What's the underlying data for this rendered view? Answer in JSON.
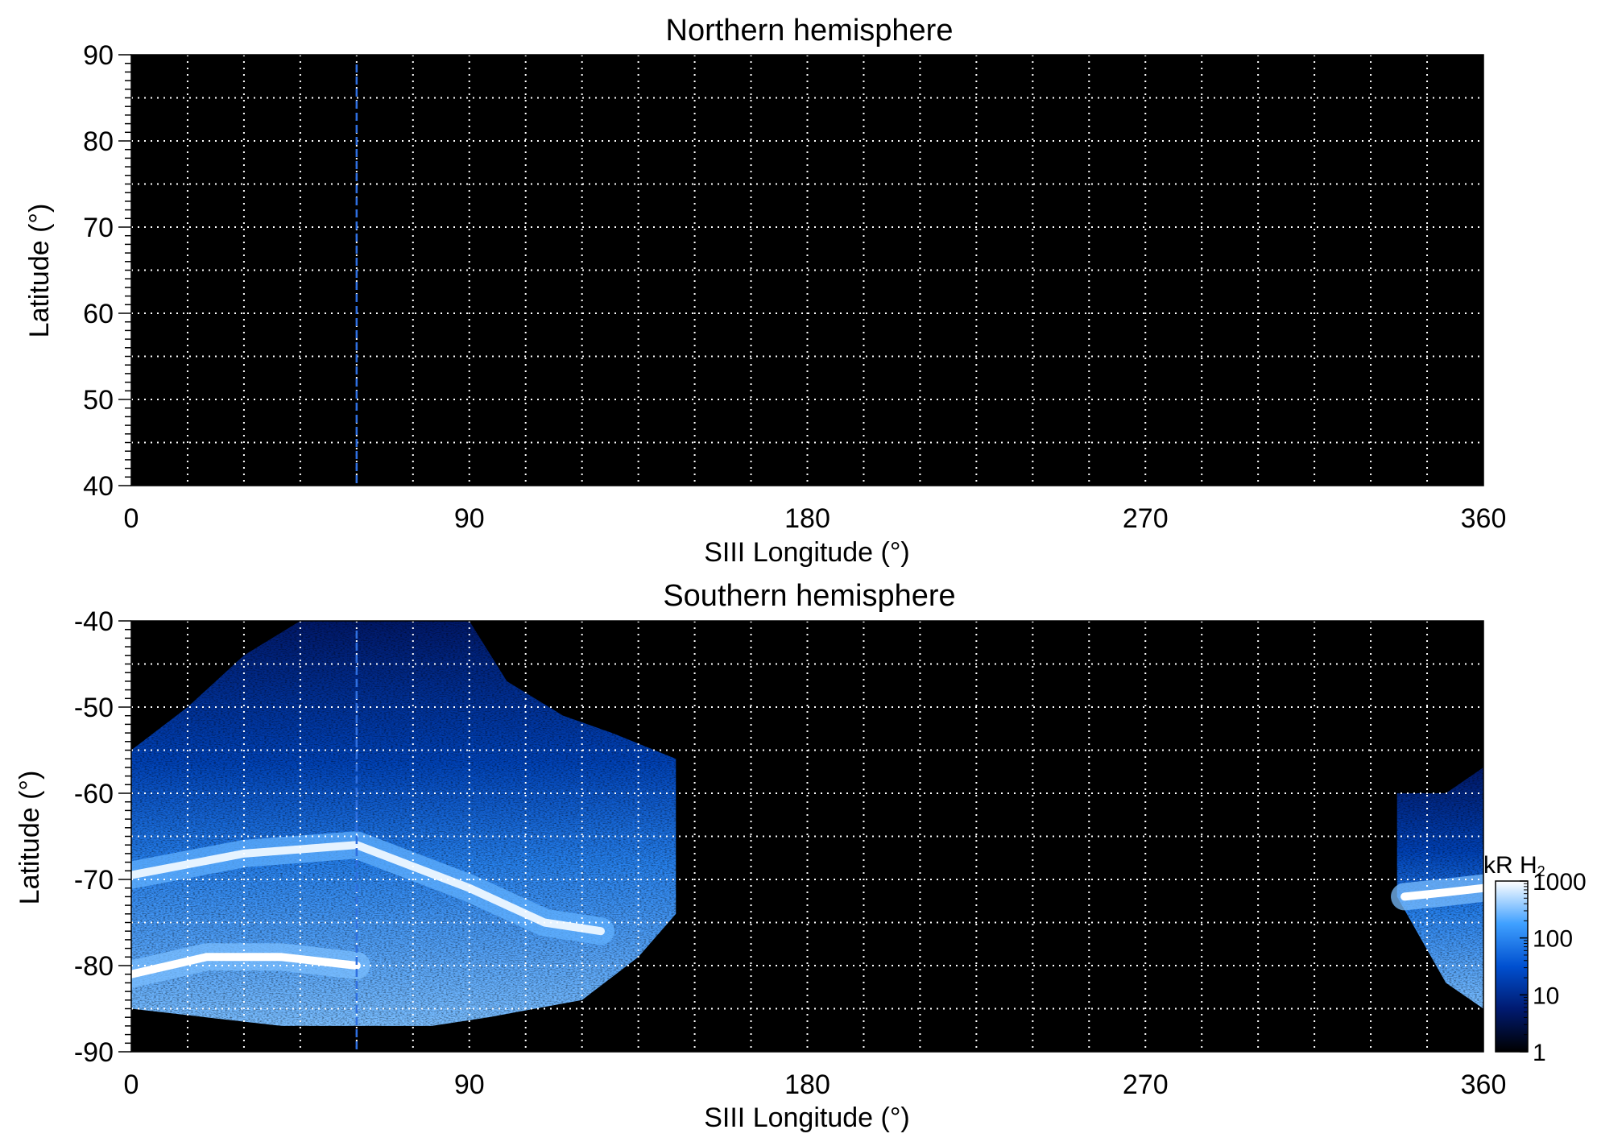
{
  "chart_data": [
    {
      "type": "heatmap",
      "title": "Northern hemisphere",
      "xlabel": "SIII Longitude (°)",
      "ylabel": "Latitude (°)",
      "xlim": [
        0,
        360
      ],
      "ylim": [
        40,
        90
      ],
      "xticks": [
        "0",
        "90",
        "180",
        "270",
        "360"
      ],
      "xtick_values": [
        0,
        90,
        180,
        270,
        360
      ],
      "yticks": [
        "90",
        "80",
        "70",
        "60",
        "50",
        "40"
      ],
      "ytick_values": [
        90,
        80,
        70,
        60,
        50,
        40
      ],
      "grid": true,
      "grid_step_longitude": 15,
      "grid_step_latitude": 5,
      "marker_longitude": 60,
      "emission": []
    },
    {
      "type": "heatmap",
      "title": "Southern hemisphere",
      "xlabel": "SIII Longitude (°)",
      "ylabel": "Latitude (°)",
      "xlim": [
        0,
        360
      ],
      "ylim": [
        -90,
        -40
      ],
      "xticks": [
        "0",
        "90",
        "180",
        "270",
        "360"
      ],
      "xtick_values": [
        0,
        90,
        180,
        270,
        360
      ],
      "yticks": [
        "-40",
        "-50",
        "-60",
        "-70",
        "-80",
        "-90"
      ],
      "ytick_values": [
        -40,
        -50,
        -60,
        -70,
        -80,
        -90
      ],
      "grid": true,
      "grid_step_longitude": 15,
      "grid_step_latitude": 5,
      "marker_longitude": 60,
      "emission": [
        {
          "region": "main",
          "lon_range": [
            0,
            145
          ],
          "lat_top": [
            [
              0,
              -55
            ],
            [
              15,
              -50
            ],
            [
              30,
              -44
            ],
            [
              45,
              -40
            ],
            [
              90,
              -40
            ],
            [
              100,
              -47
            ],
            [
              115,
              -51
            ],
            [
              128,
              -53
            ],
            [
              145,
              -56
            ]
          ],
          "lat_bottom": [
            [
              0,
              -85
            ],
            [
              20,
              -86
            ],
            [
              40,
              -87
            ],
            [
              80,
              -87
            ],
            [
              95,
              -86
            ],
            [
              120,
              -84
            ],
            [
              135,
              -79
            ],
            [
              145,
              -74
            ]
          ],
          "bright_bands": [
            {
              "points": [
                [
                  0,
                  -69.5
                ],
                [
                  30,
                  -67
                ],
                [
                  60,
                  -66
                ],
                [
                  90,
                  -71
                ],
                [
                  110,
                  -75
                ],
                [
                  125,
                  -76
                ]
              ],
              "level": 800
            },
            {
              "points": [
                [
                  0,
                  -81
                ],
                [
                  20,
                  -79
                ],
                [
                  40,
                  -79
                ],
                [
                  60,
                  -80
                ]
              ],
              "level": 1000
            }
          ]
        },
        {
          "region": "wrap",
          "lon_range": [
            337,
            360
          ],
          "lat_top": [
            [
              337,
              -60
            ],
            [
              350,
              -60
            ],
            [
              360,
              -57
            ]
          ],
          "lat_bottom": [
            [
              337,
              -72
            ],
            [
              350,
              -82
            ],
            [
              360,
              -85
            ]
          ],
          "bright_bands": [
            {
              "points": [
                [
                  339,
                  -72
                ],
                [
                  350,
                  -71.5
                ],
                [
                  360,
                  -71
                ]
              ],
              "level": 1000
            }
          ]
        }
      ],
      "colorbar": {
        "label": "kR H",
        "label_subscript": "2",
        "scale": "log",
        "range": [
          1,
          1000
        ],
        "ticks": [
          "1000",
          "100",
          "10",
          "1"
        ],
        "tick_values": [
          1000,
          100,
          10,
          1
        ],
        "colors": [
          "#000000",
          "#001a70",
          "#0050d0",
          "#3fa0ff",
          "#ffffff"
        ]
      }
    }
  ],
  "colors": {
    "background": "#000000",
    "grid": "#ffffff",
    "marker": "#2f6fe0"
  }
}
